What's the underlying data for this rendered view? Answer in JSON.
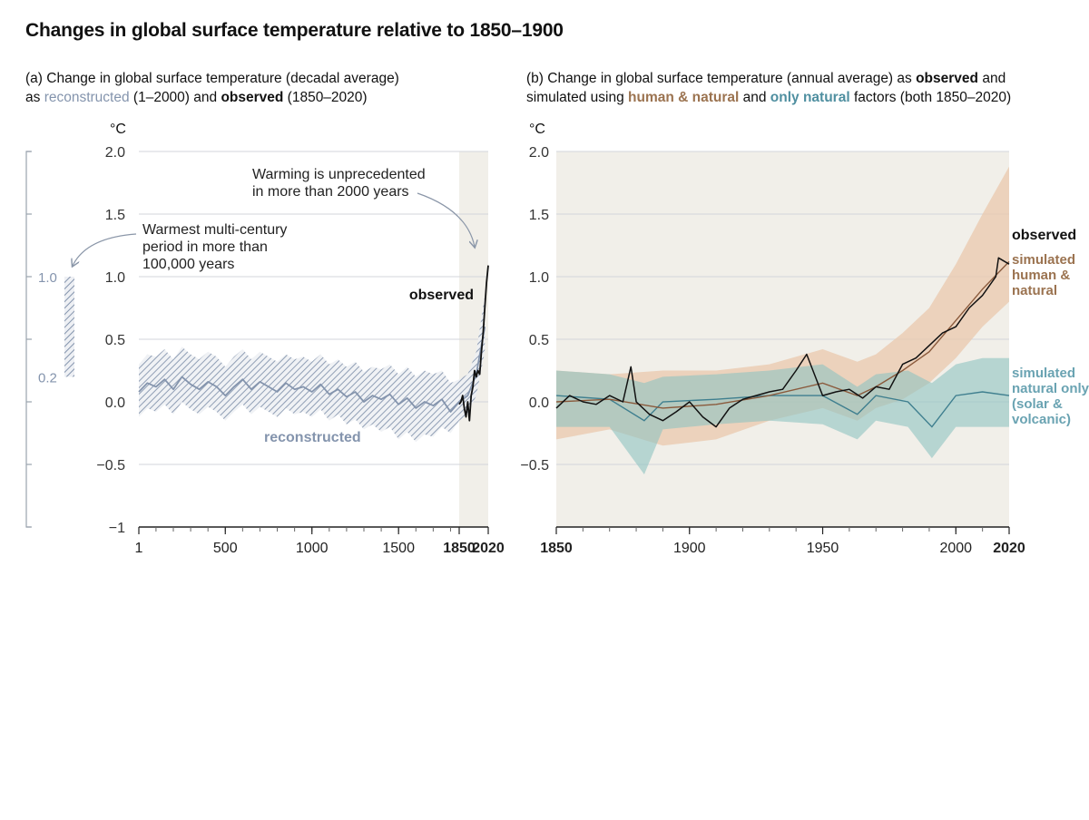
{
  "title": "Changes in global surface temperature relative to 1850–1900",
  "panel_a": {
    "subtitle_line1": "(a) Change in global surface temperature (decadal average)",
    "subtitle_as": "as ",
    "subtitle_reconstructed": "reconstructed",
    "subtitle_mid": " (1–2000) and ",
    "subtitle_observed": "observed",
    "subtitle_end": " (1850–2020)"
  },
  "panel_b": {
    "subtitle_line1_pre": "(b) Change in global surface temperature (annual average) as ",
    "subtitle_observed": "observed",
    "subtitle_line1_post": " and",
    "subtitle_line2_pre": "simulated using ",
    "subtitle_hn": "human & natural",
    "subtitle_and": " and ",
    "subtitle_nat": "only natural",
    "subtitle_line2_post": " factors (both 1850–2020)"
  },
  "colors": {
    "reconstructed": "#8494ad",
    "observed": "#111111",
    "human_natural": "#8a5a3c",
    "human_natural_band": "#e9c8ac",
    "natural": "#3f7f8f",
    "natural_band": "#8fc3c2",
    "shade": "#f1efe9"
  },
  "chart_data": [
    {
      "type": "line",
      "panel": "a",
      "ylabel": "°C",
      "ylim": [
        -1,
        2
      ],
      "yticks": [
        "2.0",
        "1.5",
        "1.0",
        "0.5",
        "0.0",
        "−0.5",
        "−1"
      ],
      "xticks": [
        "1",
        "500",
        "1000",
        "1500",
        "1850",
        "2020"
      ],
      "xlim": [
        1,
        2020
      ],
      "shaded_period": [
        1850,
        2020
      ],
      "series": [
        {
          "name": "reconstructed",
          "x": [
            1,
            50,
            100,
            150,
            200,
            250,
            300,
            350,
            400,
            450,
            500,
            550,
            600,
            650,
            700,
            750,
            800,
            850,
            900,
            950,
            1000,
            1050,
            1100,
            1150,
            1200,
            1250,
            1300,
            1350,
            1400,
            1450,
            1500,
            1550,
            1600,
            1650,
            1700,
            1750,
            1800,
            1850,
            1900,
            1950,
            2000
          ],
          "y": [
            0.08,
            0.15,
            0.12,
            0.18,
            0.1,
            0.2,
            0.14,
            0.1,
            0.16,
            0.12,
            0.05,
            0.12,
            0.18,
            0.1,
            0.16,
            0.12,
            0.08,
            0.15,
            0.1,
            0.12,
            0.08,
            0.14,
            0.06,
            0.1,
            0.04,
            0.08,
            0.0,
            0.05,
            0.02,
            0.06,
            -0.02,
            0.03,
            -0.05,
            0.0,
            -0.03,
            0.02,
            -0.08,
            0.0,
            0.05,
            0.22,
            0.6
          ],
          "band_low": [
            -0.12,
            -0.05,
            -0.08,
            -0.02,
            -0.1,
            0.0,
            -0.06,
            -0.1,
            -0.04,
            -0.08,
            -0.15,
            -0.08,
            -0.02,
            -0.1,
            -0.04,
            -0.08,
            -0.12,
            -0.05,
            -0.1,
            -0.08,
            -0.12,
            -0.06,
            -0.15,
            -0.1,
            -0.18,
            -0.14,
            -0.22,
            -0.18,
            -0.24,
            -0.2,
            -0.3,
            -0.24,
            -0.32,
            -0.26,
            -0.28,
            -0.2,
            -0.25,
            -0.15,
            -0.1,
            0.05,
            0.4
          ],
          "band_high": [
            0.3,
            0.38,
            0.36,
            0.42,
            0.34,
            0.44,
            0.38,
            0.34,
            0.4,
            0.36,
            0.28,
            0.36,
            0.42,
            0.34,
            0.4,
            0.36,
            0.32,
            0.38,
            0.34,
            0.36,
            0.32,
            0.38,
            0.3,
            0.34,
            0.28,
            0.32,
            0.24,
            0.28,
            0.26,
            0.3,
            0.22,
            0.28,
            0.2,
            0.25,
            0.22,
            0.25,
            0.15,
            0.18,
            0.22,
            0.4,
            0.85
          ]
        },
        {
          "name": "observed",
          "x": [
            1850,
            1860,
            1870,
            1880,
            1890,
            1900,
            1910,
            1920,
            1930,
            1940,
            1950,
            1960,
            1970,
            1980,
            1990,
            2000,
            2010,
            2020
          ],
          "y": [
            -0.02,
            0.0,
            0.05,
            -0.05,
            -0.12,
            0.0,
            -0.15,
            0.05,
            0.12,
            0.25,
            0.2,
            0.25,
            0.22,
            0.4,
            0.55,
            0.75,
            0.95,
            1.09
          ]
        }
      ],
      "side_bar": {
        "low": 0.2,
        "high": 1.0,
        "label_high": "1.0",
        "label_low": "0.2"
      },
      "annotations": {
        "warmest": "Warmest multi-century\nperiod in more than\n100,000 years",
        "unprecedented": "Warming is unprecedented\nin more than 2000 years",
        "observed_label": "observed",
        "reconstructed_label": "reconstructed"
      }
    },
    {
      "type": "line",
      "panel": "b",
      "ylabel": "°C",
      "ylim": [
        -1,
        2
      ],
      "yticks": [
        "2.0",
        "1.5",
        "1.0",
        "0.5",
        "0.0",
        "−0.5"
      ],
      "xticks": [
        "1850",
        "1900",
        "1950",
        "2000",
        "2020"
      ],
      "xlim": [
        1850,
        2020
      ],
      "series": [
        {
          "name": "observed",
          "x": [
            1850,
            1855,
            1860,
            1865,
            1870,
            1875,
            1878,
            1880,
            1885,
            1890,
            1895,
            1900,
            1905,
            1910,
            1915,
            1920,
            1925,
            1930,
            1935,
            1940,
            1944,
            1950,
            1955,
            1960,
            1965,
            1970,
            1975,
            1980,
            1985,
            1990,
            1995,
            2000,
            2005,
            2010,
            2015,
            2016,
            2020
          ],
          "y": [
            -0.05,
            0.05,
            0.0,
            -0.02,
            0.05,
            0.0,
            0.28,
            0.0,
            -0.1,
            -0.15,
            -0.08,
            0.0,
            -0.12,
            -0.2,
            -0.05,
            0.02,
            0.05,
            0.08,
            0.1,
            0.25,
            0.38,
            0.05,
            0.08,
            0.1,
            0.03,
            0.12,
            0.1,
            0.3,
            0.35,
            0.45,
            0.55,
            0.6,
            0.75,
            0.85,
            1.0,
            1.15,
            1.1
          ]
        },
        {
          "name": "simulated human & natural",
          "x": [
            1850,
            1870,
            1890,
            1910,
            1930,
            1950,
            1963,
            1970,
            1980,
            1990,
            2000,
            2010,
            2020
          ],
          "y": [
            0.0,
            0.02,
            -0.05,
            -0.02,
            0.05,
            0.15,
            0.05,
            0.12,
            0.25,
            0.4,
            0.65,
            0.9,
            1.12
          ],
          "band_low": [
            -0.3,
            -0.22,
            -0.35,
            -0.3,
            -0.15,
            -0.05,
            -0.15,
            -0.05,
            0.02,
            0.15,
            0.35,
            0.6,
            0.8
          ],
          "band_high": [
            0.25,
            0.22,
            0.25,
            0.25,
            0.3,
            0.42,
            0.32,
            0.38,
            0.55,
            0.75,
            1.1,
            1.5,
            1.88
          ]
        },
        {
          "name": "simulated natural only (solar & volcanic)",
          "x": [
            1850,
            1870,
            1883,
            1890,
            1910,
            1930,
            1950,
            1963,
            1970,
            1982,
            1991,
            2000,
            2010,
            2020
          ],
          "y": [
            0.05,
            0.02,
            -0.15,
            0.0,
            0.02,
            0.05,
            0.05,
            -0.1,
            0.05,
            0.0,
            -0.2,
            0.05,
            0.08,
            0.05
          ],
          "band_low": [
            -0.2,
            -0.2,
            -0.58,
            -0.22,
            -0.18,
            -0.15,
            -0.18,
            -0.3,
            -0.15,
            -0.2,
            -0.45,
            -0.2,
            -0.2,
            -0.2
          ],
          "band_high": [
            0.25,
            0.22,
            0.15,
            0.2,
            0.22,
            0.25,
            0.3,
            0.12,
            0.22,
            0.25,
            0.15,
            0.3,
            0.35,
            0.35
          ]
        }
      ],
      "labels": {
        "observed": "observed",
        "hn_1": "simulated",
        "hn_2": "human &",
        "hn_3": "natural",
        "nat_1": "simulated",
        "nat_2": "natural only",
        "nat_3": "(solar &",
        "nat_4": "volcanic)"
      }
    }
  ]
}
